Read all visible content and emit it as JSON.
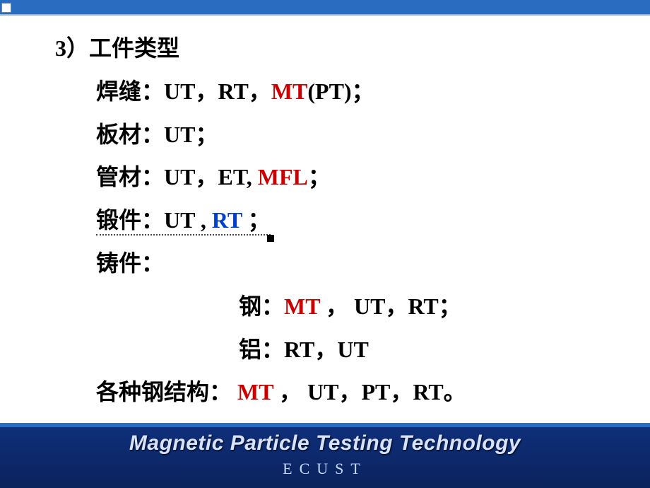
{
  "heading": "3）工件类型",
  "rows": {
    "weld": {
      "label": "焊缝：",
      "p1": "UT，RT，",
      "hl": "MT",
      "p2": "(PT)；"
    },
    "plate": {
      "label": "板材：",
      "p1": "UT；"
    },
    "tube": {
      "label": "管材：",
      "p1": "UT，ET, ",
      "hl": "MFL",
      "p2": "；"
    },
    "forging": {
      "label": "锻件：",
      "p1": "UT , ",
      "hl": "RT",
      "p2": " ；"
    },
    "casting": {
      "label": "铸件："
    },
    "steel": {
      "label": "钢：",
      "hl": "MT",
      "p2": " ， UT，RT；"
    },
    "alu": {
      "label": "铝：",
      "p1": "RT，UT"
    },
    "structure": {
      "label": "各种钢结构：",
      "hl": " MT",
      "p2": " ， UT，PT，RT。"
    }
  },
  "footer": {
    "title": "Magnetic Particle Testing Technology",
    "sub": "ECUST"
  },
  "colors": {
    "red": "#cc0000",
    "blue": "#0040cc",
    "topbar": "#2a6cc0",
    "footer_grad_top": "#0f2f7a",
    "footer_grad_bottom": "#0a235c"
  }
}
